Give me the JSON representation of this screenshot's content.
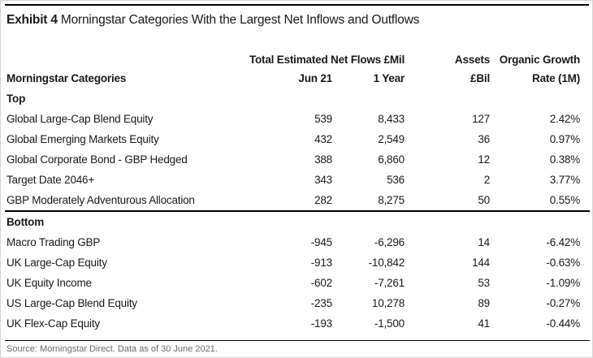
{
  "exhibit": {
    "label": "Exhibit 4",
    "title": " Morningstar Categories With the Largest Net Inflows and Outflows"
  },
  "table": {
    "group_headers": {
      "net_flows": "Total Estimated Net Flows £Mil",
      "assets": "Assets",
      "organic_growth": "Organic Growth"
    },
    "column_headers": {
      "category": "Morningstar Categories",
      "jun21": "Jun 21",
      "one_year": "1 Year",
      "assets_bil": "£Bil",
      "rate_1m": "Rate (1M)"
    },
    "sections": [
      {
        "label": "Top",
        "rows": [
          {
            "category": "Global Large-Cap Blend Equity",
            "jun21": "539",
            "one_year": "8,433",
            "assets": "127",
            "rate": "2.42%"
          },
          {
            "category": "Global Emerging Markets Equity",
            "jun21": "432",
            "one_year": "2,549",
            "assets": "36",
            "rate": "0.97%"
          },
          {
            "category": "Global Corporate Bond - GBP Hedged",
            "jun21": "388",
            "one_year": "6,860",
            "assets": "12",
            "rate": "0.38%"
          },
          {
            "category": "Target Date 2046+",
            "jun21": "343",
            "one_year": "536",
            "assets": "2",
            "rate": "3.77%"
          },
          {
            "category": "GBP Moderately Adventurous Allocation",
            "jun21": "282",
            "one_year": "8,275",
            "assets": "50",
            "rate": "0.55%"
          }
        ]
      },
      {
        "label": "Bottom",
        "rows": [
          {
            "category": "Macro Trading GBP",
            "jun21": "-945",
            "one_year": "-6,296",
            "assets": "14",
            "rate": "-6.42%"
          },
          {
            "category": "UK Large-Cap Equity",
            "jun21": "-913",
            "one_year": "-10,842",
            "assets": "144",
            "rate": "-0.63%"
          },
          {
            "category": "UK Equity Income",
            "jun21": "-602",
            "one_year": "-7,261",
            "assets": "53",
            "rate": "-1.09%"
          },
          {
            "category": "US Large-Cap Blend Equity",
            "jun21": "-235",
            "one_year": "10,278",
            "assets": "89",
            "rate": "-0.27%"
          },
          {
            "category": "UK Flex-Cap Equity",
            "jun21": "-193",
            "one_year": "-1,500",
            "assets": "41",
            "rate": "-0.44%"
          }
        ]
      }
    ]
  },
  "footer": {
    "source": "Source: Morningstar Direct. Data as of 30 June 2021."
  },
  "colors": {
    "text": "#1a1a1a",
    "rule": "#000000",
    "source_text": "#6b6b6b"
  },
  "chart_data": {
    "type": "table",
    "title": "Exhibit 4 Morningstar Categories With the Largest Net Inflows and Outflows",
    "columns": [
      "Morningstar Categories",
      "Net Flows £Mil Jun 21",
      "Net Flows £Mil 1 Year",
      "Assets £Bil",
      "Organic Growth Rate (1M) %"
    ],
    "sections": [
      {
        "label": "Top",
        "rows": [
          [
            "Global Large-Cap Blend Equity",
            539,
            8433,
            127,
            2.42
          ],
          [
            "Global Emerging Markets Equity",
            432,
            2549,
            36,
            0.97
          ],
          [
            "Global Corporate Bond - GBP Hedged",
            388,
            6860,
            12,
            0.38
          ],
          [
            "Target Date 2046+",
            343,
            536,
            2,
            3.77
          ],
          [
            "GBP Moderately Adventurous Allocation",
            282,
            8275,
            50,
            0.55
          ]
        ]
      },
      {
        "label": "Bottom",
        "rows": [
          [
            "Macro Trading GBP",
            -945,
            -6296,
            14,
            -6.42
          ],
          [
            "UK Large-Cap Equity",
            -913,
            -10842,
            144,
            -0.63
          ],
          [
            "UK Equity Income",
            -602,
            -7261,
            53,
            -1.09
          ],
          [
            "US Large-Cap Blend Equity",
            -235,
            10278,
            89,
            -0.27
          ],
          [
            "UK Flex-Cap Equity",
            -193,
            -1500,
            41,
            -0.44
          ]
        ]
      }
    ],
    "source": "Source: Morningstar Direct. Data as of 30 June 2021."
  }
}
